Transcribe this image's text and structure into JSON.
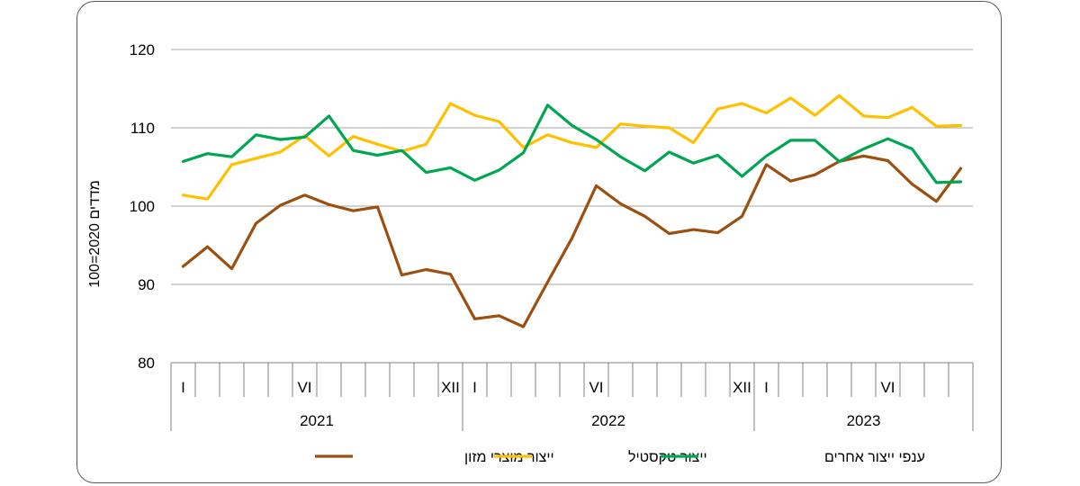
{
  "chart_data": {
    "type": "line",
    "title": "",
    "ylabel": "מדדים 2020=100",
    "xlabel": "",
    "ylim": [
      80,
      120
    ],
    "yticks": [
      80,
      90,
      100,
      110,
      120
    ],
    "grid": true,
    "legend_position": "bottom",
    "months": [
      "I",
      "",
      "",
      "",
      "",
      "VI",
      "",
      "",
      "",
      "",
      "",
      "XII",
      "I",
      "",
      "",
      "",
      "",
      "VI",
      "",
      "",
      "",
      "",
      "",
      "XII",
      "I",
      "",
      "",
      "",
      "",
      "VI",
      "",
      "",
      ""
    ],
    "years": [
      {
        "label": "2021",
        "start": 0,
        "count": 12
      },
      {
        "label": "2022",
        "start": 12,
        "count": 12
      },
      {
        "label": "2023",
        "start": 24,
        "count": 9
      }
    ],
    "series": [
      {
        "name": "ייצור מוצרי מזון",
        "color": "#9C4F0F",
        "values": [
          92.3,
          94.8,
          92.0,
          97.8,
          100.1,
          101.4,
          100.2,
          99.4,
          99.9,
          91.2,
          91.9,
          91.3,
          85.6,
          86.0,
          84.6,
          90.3,
          95.9,
          102.6,
          100.3,
          98.7,
          96.5,
          97.0,
          96.6,
          98.7,
          105.3,
          103.2,
          104.0,
          105.7,
          106.4,
          105.8,
          102.8,
          100.6,
          104.8
        ]
      },
      {
        "name": "ייצור טקסטיל",
        "color": "#FFC000",
        "values": [
          101.4,
          100.9,
          105.3,
          106.1,
          106.9,
          109.0,
          106.4,
          108.9,
          107.9,
          107.0,
          107.9,
          113.1,
          111.6,
          110.8,
          107.5,
          109.1,
          108.1,
          107.5,
          110.5,
          110.2,
          110.0,
          108.1,
          112.4,
          113.1,
          111.9,
          113.8,
          111.6,
          114.1,
          111.5,
          111.3,
          112.6,
          110.2,
          110.3
        ]
      },
      {
        "name": "ענפי ייצור אחרים",
        "color": "#00A651",
        "values": [
          105.7,
          106.7,
          106.3,
          109.1,
          108.5,
          108.8,
          111.5,
          107.1,
          106.5,
          107.1,
          104.3,
          104.9,
          103.3,
          104.6,
          106.8,
          112.9,
          110.3,
          108.5,
          106.3,
          104.5,
          106.9,
          105.5,
          106.5,
          103.8,
          106.4,
          108.4,
          108.4,
          105.7,
          107.3,
          108.6,
          107.3,
          103.0,
          103.1
        ]
      }
    ]
  }
}
